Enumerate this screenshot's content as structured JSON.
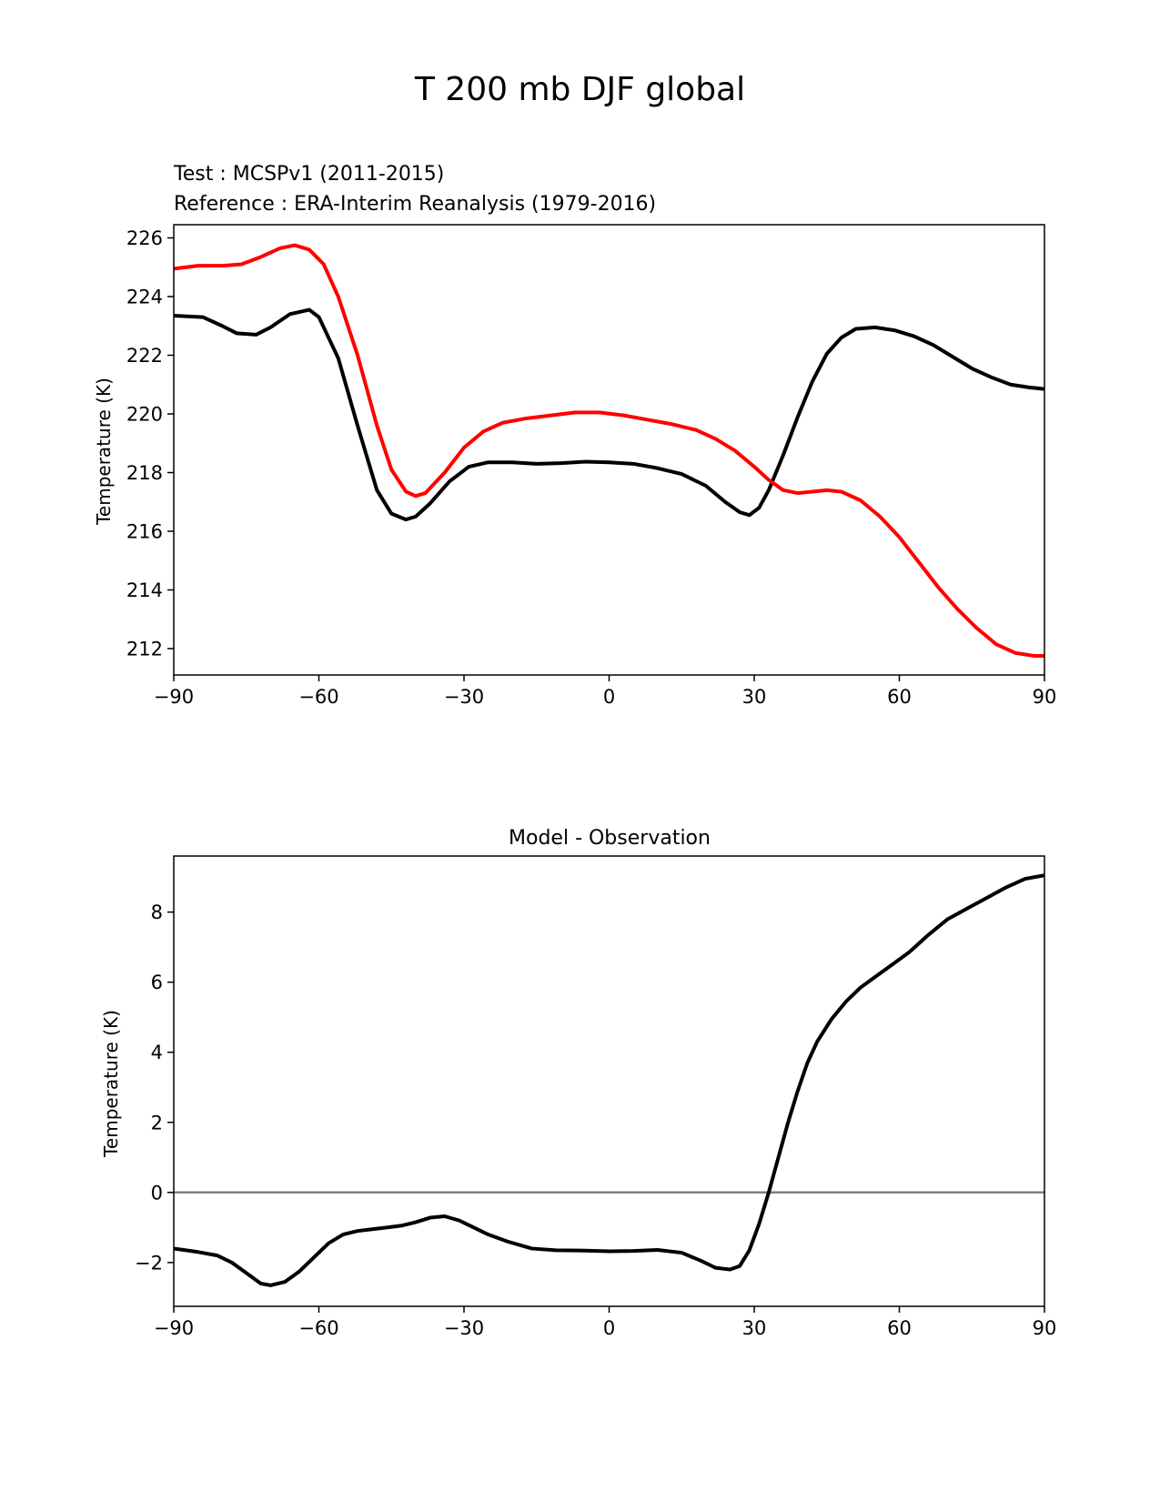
{
  "figure": {
    "title": "T 200 mb DJF global"
  },
  "chart_data": [
    {
      "type": "line",
      "title_test": "Test : MCSPv1 (2011-2015)",
      "title_reference": "Reference : ERA-Interim Reanalysis (1979-2016)",
      "xlabel": "",
      "ylabel": "Temperature (K)",
      "xlim": [
        -90,
        90
      ],
      "ylim": [
        211.1,
        226.45
      ],
      "xticks": [
        -90,
        -60,
        -30,
        0,
        30,
        60,
        90
      ],
      "xtick_labels": [
        "−90",
        "−60",
        "−30",
        "0",
        "30",
        "60",
        "90"
      ],
      "yticks": [
        212,
        214,
        216,
        218,
        220,
        222,
        224,
        226
      ],
      "ytick_labels": [
        "212",
        "214",
        "216",
        "218",
        "220",
        "222",
        "224",
        "226"
      ],
      "grid": false,
      "colors": {
        "test": "#000000",
        "reference": "#ff0000"
      },
      "series": [
        {
          "role": "test",
          "x": [
            -90,
            -84,
            -80,
            -77,
            -73,
            -70,
            -66,
            -62,
            -60,
            -56,
            -52,
            -48,
            -45,
            -42,
            -40,
            -37,
            -33,
            -29,
            -25,
            -20,
            -15,
            -10,
            -5,
            0,
            5,
            10,
            15,
            20,
            24,
            27,
            29,
            31,
            33,
            36,
            39,
            42,
            45,
            48,
            51,
            55,
            59,
            63,
            67,
            71,
            75,
            79,
            83,
            87,
            90
          ],
          "y": [
            223.35,
            223.3,
            223.0,
            222.75,
            222.7,
            222.95,
            223.4,
            223.55,
            223.3,
            221.9,
            219.6,
            217.4,
            216.6,
            216.4,
            216.5,
            216.95,
            217.7,
            218.2,
            218.35,
            218.35,
            218.3,
            218.32,
            218.37,
            218.35,
            218.3,
            218.15,
            217.95,
            217.55,
            217.0,
            216.65,
            216.55,
            216.8,
            217.4,
            218.6,
            219.9,
            221.1,
            222.05,
            222.6,
            222.9,
            222.95,
            222.85,
            222.65,
            222.35,
            221.95,
            221.55,
            221.25,
            221.0,
            220.9,
            220.85
          ]
        },
        {
          "role": "reference",
          "x": [
            -90,
            -85,
            -80,
            -76,
            -72,
            -68,
            -65,
            -62,
            -59,
            -56,
            -52,
            -48,
            -45,
            -42,
            -40,
            -38,
            -34,
            -30,
            -26,
            -22,
            -17,
            -12,
            -7,
            -2,
            3,
            8,
            13,
            18,
            22,
            26,
            30,
            33,
            36,
            39,
            42,
            45,
            48,
            52,
            56,
            60,
            64,
            68,
            72,
            76,
            80,
            84,
            88,
            90
          ],
          "y": [
            224.95,
            225.05,
            225.05,
            225.1,
            225.35,
            225.65,
            225.75,
            225.6,
            225.1,
            224.0,
            222.0,
            219.6,
            218.1,
            217.35,
            217.2,
            217.3,
            218.0,
            218.85,
            219.4,
            219.7,
            219.85,
            219.95,
            220.05,
            220.05,
            219.95,
            219.8,
            219.65,
            219.45,
            219.15,
            218.75,
            218.2,
            217.75,
            217.4,
            217.3,
            217.35,
            217.4,
            217.35,
            217.05,
            216.5,
            215.8,
            214.95,
            214.1,
            213.35,
            212.7,
            212.15,
            211.85,
            211.75,
            211.75
          ]
        }
      ]
    },
    {
      "type": "line",
      "title": "Model - Observation",
      "xlabel": "",
      "ylabel": "Temperature (K)",
      "xlim": [
        -90,
        90
      ],
      "ylim": [
        -3.25,
        9.6
      ],
      "xticks": [
        -90,
        -60,
        -30,
        0,
        30,
        60,
        90
      ],
      "xtick_labels": [
        "−90",
        "−60",
        "−30",
        "0",
        "30",
        "60",
        "90"
      ],
      "yticks": [
        -2,
        0,
        2,
        4,
        6,
        8
      ],
      "ytick_labels": [
        "−2",
        "0",
        "2",
        "4",
        "6",
        "8"
      ],
      "grid": false,
      "reference_line": {
        "y": 0,
        "color": "#808080"
      },
      "colors": {
        "difference": "#000000"
      },
      "series": [
        {
          "role": "difference",
          "x": [
            -90,
            -85,
            -81,
            -78,
            -75,
            -72,
            -70,
            -67,
            -64,
            -61,
            -58,
            -55,
            -52,
            -49,
            -46,
            -43,
            -40,
            -37,
            -34,
            -31,
            -28,
            -25,
            -21,
            -16,
            -11,
            -5,
            0,
            5,
            10,
            15,
            19,
            22,
            25,
            27,
            29,
            31,
            33,
            35,
            37,
            39,
            41,
            43,
            46,
            49,
            52,
            55,
            58,
            62,
            66,
            70,
            74,
            78,
            82,
            86,
            90
          ],
          "y": [
            -1.6,
            -1.7,
            -1.8,
            -2.0,
            -2.3,
            -2.6,
            -2.65,
            -2.55,
            -2.25,
            -1.85,
            -1.45,
            -1.2,
            -1.1,
            -1.05,
            -1.0,
            -0.95,
            -0.85,
            -0.72,
            -0.68,
            -0.8,
            -1.0,
            -1.2,
            -1.4,
            -1.6,
            -1.65,
            -1.66,
            -1.68,
            -1.67,
            -1.64,
            -1.72,
            -1.95,
            -2.15,
            -2.2,
            -2.1,
            -1.65,
            -0.9,
            0.0,
            1.0,
            2.0,
            2.9,
            3.7,
            4.3,
            4.95,
            5.45,
            5.85,
            6.15,
            6.45,
            6.85,
            7.35,
            7.8,
            8.1,
            8.4,
            8.7,
            8.95,
            9.05
          ]
        }
      ]
    }
  ]
}
